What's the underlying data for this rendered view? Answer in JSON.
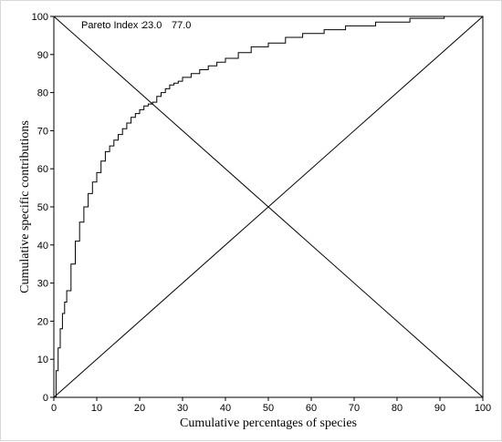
{
  "chart_data": {
    "type": "line",
    "title": "",
    "xlabel": "Cumulative percentages of species",
    "ylabel": "Cumulative specific contributions",
    "xlim": [
      0,
      100
    ],
    "ylim": [
      0,
      100
    ],
    "xticks": [
      0,
      10,
      20,
      30,
      40,
      50,
      60,
      70,
      80,
      90,
      100
    ],
    "yticks": [
      0,
      10,
      20,
      30,
      40,
      50,
      60,
      70,
      80,
      90,
      100
    ],
    "grid": false,
    "annotation": {
      "label": "Pareto Index :",
      "value_1": "23.0",
      "value_2": "77.0"
    },
    "series": [
      {
        "style": "step",
        "x": [
          0,
          0.5,
          1,
          1.5,
          2,
          2.5,
          3,
          4,
          5,
          6,
          7,
          8,
          9,
          10,
          11,
          12,
          13,
          14,
          15,
          16,
          17,
          18,
          19,
          20,
          21,
          22,
          23,
          24,
          25,
          26,
          27,
          28,
          29,
          30,
          32,
          34,
          36,
          38,
          40,
          43,
          46,
          50,
          54,
          58,
          63,
          68,
          75,
          83,
          91,
          100
        ],
        "y": [
          0,
          7,
          13,
          18,
          22,
          25,
          28,
          35,
          41,
          46,
          50,
          53.5,
          56.5,
          59,
          62,
          64.5,
          66,
          67.5,
          69,
          70.5,
          72,
          73.5,
          74.5,
          75.5,
          76.5,
          77,
          77.5,
          79,
          80,
          81,
          82,
          82.5,
          83,
          84,
          85,
          86,
          87,
          88,
          89,
          90.5,
          92,
          93,
          94.5,
          95.5,
          96.5,
          97.5,
          98.5,
          99.5,
          100,
          100
        ]
      },
      {
        "style": "diagonal",
        "x": [
          0,
          100
        ],
        "y": [
          0,
          100
        ]
      },
      {
        "style": "diagonal",
        "x": [
          0,
          100
        ],
        "y": [
          100,
          0
        ]
      }
    ]
  }
}
